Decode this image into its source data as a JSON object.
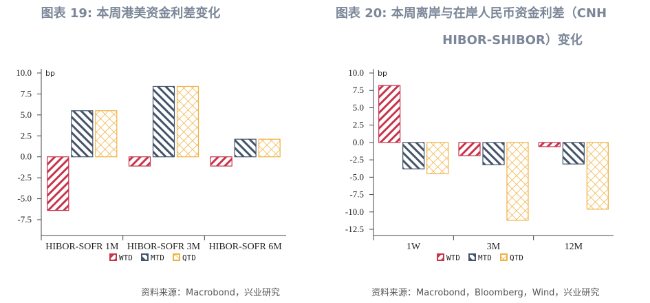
{
  "charts_meta": {
    "left_title": "图表 19: 本周港美资金利差变化",
    "right_title_line1": "图表 20: 本周离岸与在岸人民币资金利差（CNH",
    "right_title_line2": "HIBOR-SHIBOR）变化",
    "left_source": "资料来源：Macrobond，兴业研究",
    "right_source": "资料来源：Macrobond，Bloomberg，Wind，兴业研究"
  },
  "chart_data": [
    {
      "type": "bar",
      "title": "图表 19: 本周港美资金利差变化",
      "ylabel": "bp",
      "ylim": [
        -7.5,
        10.0
      ],
      "yticks": [
        "10.0",
        "7.5",
        "5.0",
        "2.5",
        "0.0",
        "-2.5",
        "-5.0",
        "-7.5"
      ],
      "categories": [
        "HIBOR-SOFR 1M",
        "HIBOR-SOFR 3M",
        "HIBOR-SOFR 6M"
      ],
      "series": [
        {
          "name": "WTD",
          "values": [
            -6.4,
            -1.1,
            -1.1
          ]
        },
        {
          "name": "MTD",
          "values": [
            5.5,
            8.4,
            2.1
          ]
        },
        {
          "name": "QTD",
          "values": [
            5.5,
            8.4,
            2.1
          ]
        }
      ],
      "legend": "bottom",
      "grid": false
    },
    {
      "type": "bar",
      "title": "图表 20: 本周离岸与在岸人民币资金利差（CNH HIBOR-SHIBOR）变化",
      "ylabel": "bp",
      "ylim": [
        -12.5,
        10.0
      ],
      "yticks": [
        "10.0",
        "7.5",
        "5.0",
        "2.5",
        "0.0",
        "-2.5",
        "-5.0",
        "-7.5",
        "-10.0",
        "-12.5"
      ],
      "categories": [
        "1W",
        "3M",
        "12M"
      ],
      "series": [
        {
          "name": "WTD",
          "values": [
            8.2,
            -1.9,
            -0.6
          ]
        },
        {
          "name": "MTD",
          "values": [
            -3.8,
            -3.2,
            -3.1
          ]
        },
        {
          "name": "QTD",
          "values": [
            -4.5,
            -11.2,
            -9.6
          ]
        }
      ],
      "legend": "bottom",
      "grid": false
    }
  ],
  "colors": {
    "WTD": "#c8344a",
    "MTD": "#44546a",
    "QTD": "#f0b140",
    "title": "#7b8798"
  }
}
